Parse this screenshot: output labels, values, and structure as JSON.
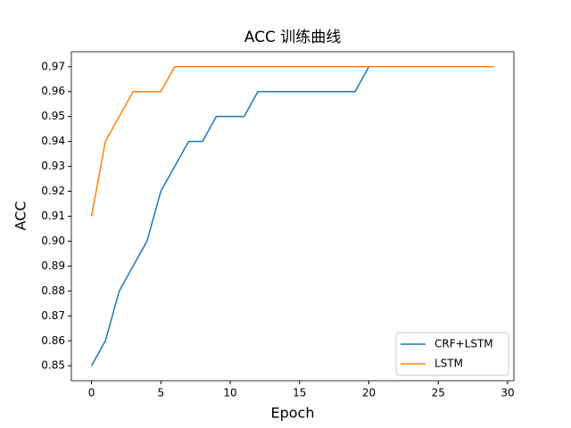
{
  "chart_data": {
    "type": "line",
    "title": "ACC 训练曲线",
    "x_label": "Epoch",
    "y_label": "ACC",
    "x": [
      0,
      1,
      2,
      3,
      4,
      5,
      6,
      7,
      8,
      9,
      10,
      11,
      12,
      13,
      14,
      15,
      16,
      17,
      18,
      19,
      20,
      21,
      22,
      23,
      24,
      25,
      26,
      27,
      28,
      29
    ],
    "series": [
      {
        "name": "CRF+LSTM",
        "color": "#1f77b4",
        "values": [
          0.85,
          0.86,
          0.88,
          0.89,
          0.9,
          0.92,
          0.93,
          0.94,
          0.94,
          0.95,
          0.95,
          0.95,
          0.96,
          0.96,
          0.96,
          0.96,
          0.96,
          0.96,
          0.96,
          0.96,
          0.97,
          0.97,
          0.97,
          0.97,
          0.97,
          0.97,
          0.97,
          0.97,
          0.97,
          0.97
        ]
      },
      {
        "name": "LSTM",
        "color": "#ff7f0e",
        "values": [
          0.91,
          0.94,
          0.95,
          0.96,
          0.96,
          0.96,
          0.97,
          0.97,
          0.97,
          0.97,
          0.97,
          0.97,
          0.97,
          0.97,
          0.97,
          0.97,
          0.97,
          0.97,
          0.97,
          0.97,
          0.97,
          0.97,
          0.97,
          0.97,
          0.97,
          0.97,
          0.97,
          0.97,
          0.97,
          0.97
        ]
      }
    ],
    "xlim": [
      -1.45,
      30.45
    ],
    "xticks": [
      0,
      5,
      10,
      15,
      20,
      25,
      30
    ],
    "ylim": [
      0.844,
      0.976
    ],
    "yticks": [
      0.85,
      0.86,
      0.87,
      0.88,
      0.89,
      {
        "value": 0.9,
        "label": "0.90"
      },
      0.91,
      0.92,
      0.93,
      0.94,
      0.95,
      0.96,
      0.97
    ],
    "legend": "lower right"
  }
}
